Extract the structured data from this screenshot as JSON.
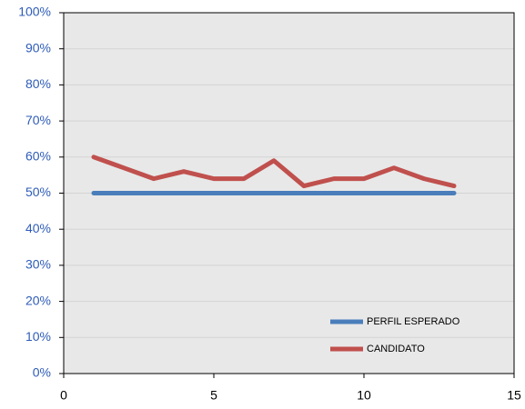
{
  "chart_data": {
    "type": "line",
    "x": [
      1,
      2,
      3,
      4,
      5,
      6,
      7,
      8,
      9,
      10,
      11,
      12,
      13
    ],
    "series": [
      {
        "name": "PERFIL ESPERADO",
        "color": "#4a7ebb",
        "values": [
          50,
          50,
          50,
          50,
          50,
          50,
          50,
          50,
          50,
          50,
          50,
          50,
          50
        ]
      },
      {
        "name": "CANDIDATO",
        "color": "#c0504d",
        "values": [
          60,
          57,
          54,
          56,
          54,
          54,
          59,
          52,
          54,
          54,
          57,
          54,
          52
        ]
      }
    ],
    "xlim": [
      0,
      15
    ],
    "xticks": [
      0,
      5,
      10,
      15
    ],
    "ylim": [
      0,
      100
    ],
    "yticks": [
      {
        "value": 0,
        "label": "0%"
      },
      {
        "value": 10,
        "label": "10%"
      },
      {
        "value": 20,
        "label": "20%"
      },
      {
        "value": 30,
        "label": "30%"
      },
      {
        "value": 40,
        "label": "40%"
      },
      {
        "value": 50,
        "label": "50%"
      },
      {
        "value": 60,
        "label": "60%"
      },
      {
        "value": 70,
        "label": "70%"
      },
      {
        "value": 80,
        "label": "80%"
      },
      {
        "value": 90,
        "label": "90%"
      },
      {
        "value": 100,
        "label": "100%"
      }
    ],
    "grid": true,
    "legend": "lower right"
  }
}
